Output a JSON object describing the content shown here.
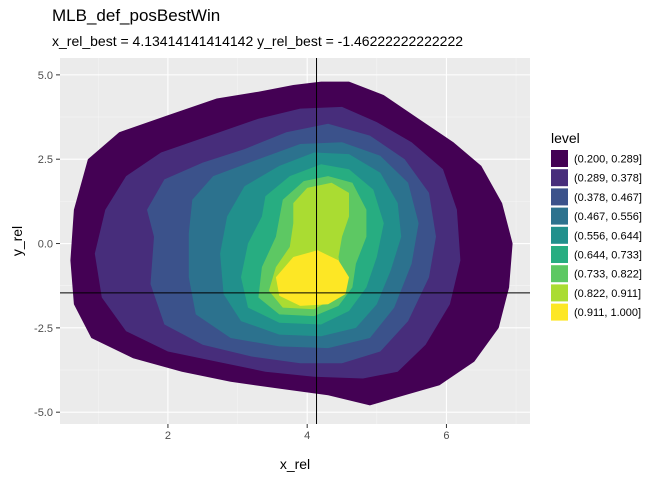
{
  "chart_data": {
    "type": "contour",
    "title": "MLB_def_posBestWin",
    "subtitle": "x_rel_best = 4.13414141414142 y_rel_best = -1.46222222222222",
    "xlabel": "x_rel",
    "ylabel": "y_rel",
    "xlim": [
      0.45,
      7.2
    ],
    "ylim": [
      -5.35,
      5.5
    ],
    "x_ticks": [
      2,
      4,
      6
    ],
    "y_ticks": [
      5.0,
      2.5,
      0.0,
      -2.5,
      -5.0
    ],
    "x_tick_labels": [
      "2",
      "4",
      "6"
    ],
    "y_tick_labels": [
      "5.0",
      "2.5",
      "0.0",
      "-2.5",
      "-5.0"
    ],
    "grid": true,
    "reference_lines": {
      "x": 4.13414141414142,
      "y": -1.46222222222222
    },
    "legend": {
      "title": "level",
      "placement": "right",
      "entries": [
        {
          "label": "(0.200, 0.289]",
          "color": "#440154"
        },
        {
          "label": "(0.289, 0.378]",
          "color": "#472D7B"
        },
        {
          "label": "(0.378, 0.467]",
          "color": "#3B528B"
        },
        {
          "label": "(0.467, 0.556]",
          "color": "#2C728E"
        },
        {
          "label": "(0.556, 0.644]",
          "color": "#21908C"
        },
        {
          "label": "(0.644, 0.733]",
          "color": "#27AD81"
        },
        {
          "label": "(0.733, 0.822]",
          "color": "#5DC863"
        },
        {
          "label": "(0.822, 0.911]",
          "color": "#AADC32"
        },
        {
          "label": "(0.911, 1.000]",
          "color": "#FDE725"
        }
      ]
    },
    "level_regions": [
      {
        "level": "(0.200, 0.289]",
        "outline": [
          [
            0.85,
            2.5
          ],
          [
            1.3,
            3.3
          ],
          [
            2.0,
            3.8
          ],
          [
            2.7,
            4.3
          ],
          [
            3.3,
            4.5
          ],
          [
            3.8,
            4.7
          ],
          [
            4.2,
            4.8
          ],
          [
            4.6,
            4.8
          ],
          [
            5.1,
            4.4
          ],
          [
            5.6,
            3.7
          ],
          [
            6.1,
            3.0
          ],
          [
            6.5,
            2.3
          ],
          [
            6.8,
            1.2
          ],
          [
            6.95,
            0.0
          ],
          [
            6.9,
            -1.3
          ],
          [
            6.75,
            -2.5
          ],
          [
            6.4,
            -3.5
          ],
          [
            5.9,
            -4.2
          ],
          [
            5.4,
            -4.5
          ],
          [
            4.9,
            -4.8
          ],
          [
            4.3,
            -4.5
          ],
          [
            3.6,
            -4.3
          ],
          [
            2.9,
            -4.1
          ],
          [
            2.2,
            -3.8
          ],
          [
            1.5,
            -3.4
          ],
          [
            0.9,
            -2.8
          ],
          [
            0.65,
            -1.8
          ],
          [
            0.6,
            -0.5
          ],
          [
            0.65,
            1.0
          ]
        ]
      },
      {
        "level": "(0.289, 0.378]",
        "outline": [
          [
            1.4,
            2.0
          ],
          [
            1.9,
            2.7
          ],
          [
            2.6,
            3.2
          ],
          [
            3.3,
            3.7
          ],
          [
            3.9,
            4.0
          ],
          [
            4.5,
            4.05
          ],
          [
            5.0,
            3.6
          ],
          [
            5.5,
            3.0
          ],
          [
            5.95,
            2.2
          ],
          [
            6.15,
            1.0
          ],
          [
            6.2,
            -0.5
          ],
          [
            6.05,
            -1.8
          ],
          [
            5.7,
            -3.0
          ],
          [
            5.3,
            -3.8
          ],
          [
            4.8,
            -4.0
          ],
          [
            4.1,
            -3.95
          ],
          [
            3.4,
            -3.8
          ],
          [
            2.7,
            -3.5
          ],
          [
            2.0,
            -3.2
          ],
          [
            1.4,
            -2.6
          ],
          [
            1.05,
            -1.6
          ],
          [
            0.95,
            -0.3
          ],
          [
            1.1,
            1.0
          ]
        ]
      },
      {
        "level": "(0.378, 0.467]",
        "outline": [
          [
            1.95,
            1.9
          ],
          [
            2.5,
            2.4
          ],
          [
            3.1,
            2.8
          ],
          [
            3.7,
            3.3
          ],
          [
            4.3,
            3.55
          ],
          [
            4.9,
            3.2
          ],
          [
            5.4,
            2.5
          ],
          [
            5.75,
            1.5
          ],
          [
            5.85,
            0.2
          ],
          [
            5.75,
            -1.0
          ],
          [
            5.45,
            -2.3
          ],
          [
            5.05,
            -3.2
          ],
          [
            4.5,
            -3.55
          ],
          [
            3.9,
            -3.55
          ],
          [
            3.2,
            -3.35
          ],
          [
            2.5,
            -3.0
          ],
          [
            1.95,
            -2.4
          ],
          [
            1.75,
            -1.2
          ],
          [
            1.8,
            0.2
          ],
          [
            1.7,
            1.0
          ]
        ]
      },
      {
        "level": "(0.467, 0.556]",
        "outline": [
          [
            2.65,
            2.0
          ],
          [
            3.3,
            2.5
          ],
          [
            3.9,
            2.95
          ],
          [
            4.5,
            3.0
          ],
          [
            5.05,
            2.6
          ],
          [
            5.45,
            1.8
          ],
          [
            5.6,
            0.6
          ],
          [
            5.5,
            -0.6
          ],
          [
            5.25,
            -1.9
          ],
          [
            4.9,
            -2.8
          ],
          [
            4.3,
            -3.1
          ],
          [
            3.6,
            -3.05
          ],
          [
            2.9,
            -2.8
          ],
          [
            2.4,
            -2.1
          ],
          [
            2.3,
            -1.0
          ],
          [
            2.3,
            0.3
          ],
          [
            2.35,
            1.3
          ]
        ]
      },
      {
        "level": "(0.556, 0.644]",
        "outline": [
          [
            3.1,
            1.7
          ],
          [
            3.6,
            2.3
          ],
          [
            4.1,
            2.7
          ],
          [
            4.6,
            2.65
          ],
          [
            5.05,
            2.1
          ],
          [
            5.3,
            1.2
          ],
          [
            5.35,
            0.2
          ],
          [
            5.2,
            -0.8
          ],
          [
            5.0,
            -1.8
          ],
          [
            4.7,
            -2.5
          ],
          [
            4.2,
            -2.75
          ],
          [
            3.6,
            -2.7
          ],
          [
            3.05,
            -2.3
          ],
          [
            2.8,
            -1.5
          ],
          [
            2.75,
            -0.3
          ],
          [
            2.85,
            0.8
          ]
        ]
      },
      {
        "level": "(0.644, 0.733]",
        "outline": [
          [
            3.4,
            1.4
          ],
          [
            3.75,
            2.0
          ],
          [
            4.2,
            2.35
          ],
          [
            4.6,
            2.2
          ],
          [
            4.95,
            1.6
          ],
          [
            5.1,
            0.6
          ],
          [
            5.0,
            -0.4
          ],
          [
            4.85,
            -1.3
          ],
          [
            4.6,
            -2.0
          ],
          [
            4.2,
            -2.4
          ],
          [
            3.6,
            -2.35
          ],
          [
            3.15,
            -1.9
          ],
          [
            3.05,
            -1.0
          ],
          [
            3.15,
            0.0
          ],
          [
            3.35,
            0.8
          ]
        ]
      },
      {
        "level": "(0.733, 0.822]",
        "outline": [
          [
            3.65,
            1.3
          ],
          [
            3.95,
            1.85
          ],
          [
            4.3,
            2.0
          ],
          [
            4.65,
            1.8
          ],
          [
            4.85,
            1.0
          ],
          [
            4.85,
            0.2
          ],
          [
            4.7,
            -0.6
          ],
          [
            4.65,
            -1.3
          ],
          [
            4.45,
            -1.85
          ],
          [
            4.1,
            -2.15
          ],
          [
            3.6,
            -2.1
          ],
          [
            3.3,
            -1.6
          ],
          [
            3.35,
            -0.7
          ],
          [
            3.55,
            0.2
          ]
        ]
      },
      {
        "level": "(0.822, 0.911]",
        "outline": [
          [
            3.8,
            1.2
          ],
          [
            4.0,
            1.65
          ],
          [
            4.35,
            1.8
          ],
          [
            4.6,
            1.5
          ],
          [
            4.6,
            0.8
          ],
          [
            4.5,
            0.2
          ],
          [
            4.45,
            -0.4
          ],
          [
            4.5,
            -1.0
          ],
          [
            4.4,
            -1.6
          ],
          [
            4.1,
            -1.95
          ],
          [
            3.65,
            -1.9
          ],
          [
            3.45,
            -1.4
          ],
          [
            3.55,
            -0.7
          ],
          [
            3.75,
            -0.1
          ],
          [
            3.8,
            0.6
          ]
        ]
      },
      {
        "level": "(0.911, 1.000]",
        "outline": [
          [
            3.55,
            -1.0
          ],
          [
            3.8,
            -0.4
          ],
          [
            4.15,
            -0.2
          ],
          [
            4.45,
            -0.5
          ],
          [
            4.6,
            -1.0
          ],
          [
            4.55,
            -1.5
          ],
          [
            4.3,
            -1.8
          ],
          [
            3.9,
            -1.85
          ],
          [
            3.6,
            -1.55
          ]
        ]
      }
    ]
  }
}
